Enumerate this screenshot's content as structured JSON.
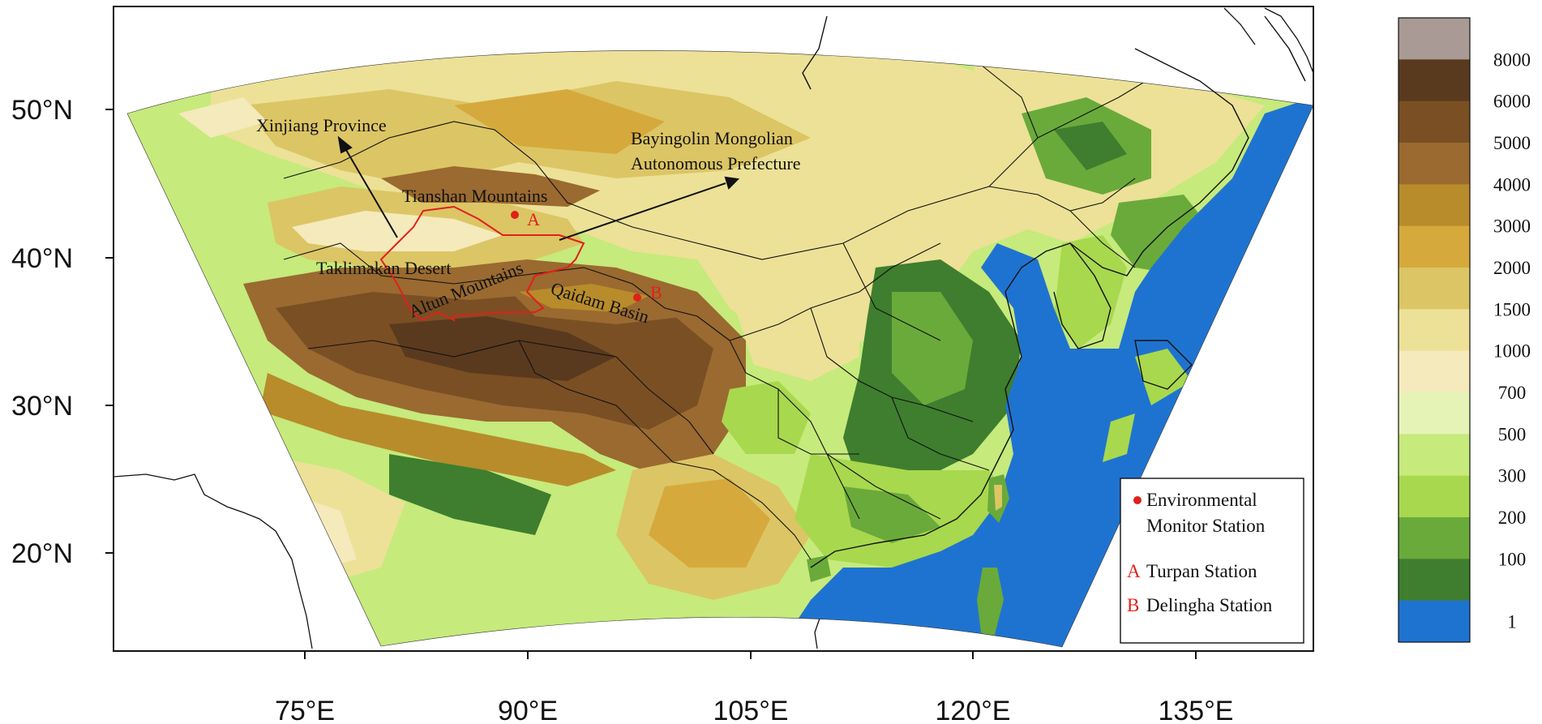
{
  "map": {
    "lat_labels": [
      "50°N",
      "40°N",
      "30°N",
      "20°N"
    ],
    "lon_labels": [
      "75°E",
      "90°E",
      "105°E",
      "120°E",
      "135°E"
    ],
    "annotations": {
      "xinjiang": "Xinjiang Province",
      "bayingolin_line1": "Bayingolin Mongolian",
      "bayingolin_line2": "Autonomous Prefecture",
      "tianshan": "Tianshan Mountains",
      "taklimakan": "Taklimakan Desert",
      "altun": "Altun Mountains",
      "qaidam": "Qaidam Basin"
    },
    "stations": [
      {
        "marker": "A",
        "name": "Turpan Station"
      },
      {
        "marker": "B",
        "name": "Delingha Station"
      }
    ],
    "legend": {
      "env_line1": "Environmental",
      "env_line2": "Monitor Station",
      "a_marker": "A",
      "a_label": "Turpan Station",
      "b_marker": "B",
      "b_label": "Delingha Station"
    },
    "colors": {
      "ocean": "#1f73d0",
      "boundary_red": "#e0201b"
    }
  },
  "colorbar": {
    "levels": [
      "8000",
      "6000",
      "5000",
      "4000",
      "3000",
      "2000",
      "1500",
      "1000",
      "700",
      "500",
      "300",
      "200",
      "100",
      "1"
    ],
    "colors": [
      "#a99a95",
      "#5a3a1e",
      "#7a4f24",
      "#9a6a30",
      "#b88c2a",
      "#d6a93c",
      "#dcc565",
      "#ece197",
      "#f4eabc",
      "#e6f3b6",
      "#c6ea7c",
      "#a8d84e",
      "#6aaa3a",
      "#3e7e2e",
      "#1f73d0"
    ]
  }
}
